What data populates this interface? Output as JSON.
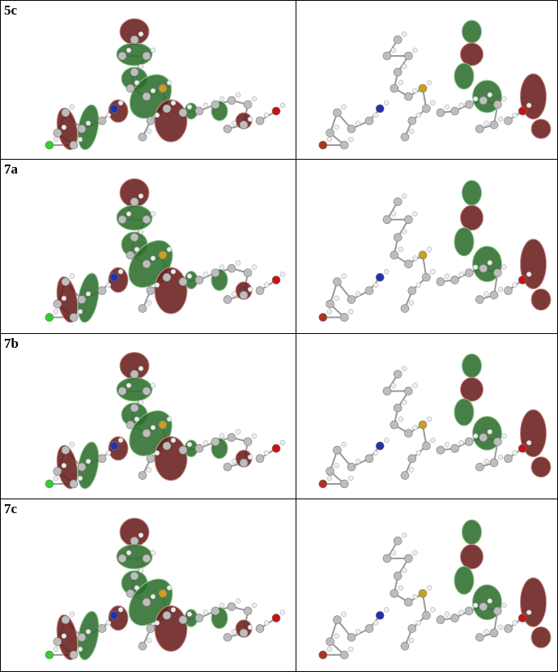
{
  "table": {
    "rows": [
      {
        "label": "5c"
      },
      {
        "label": "7a"
      },
      {
        "label": "7b"
      },
      {
        "label": "7c"
      }
    ]
  }
}
